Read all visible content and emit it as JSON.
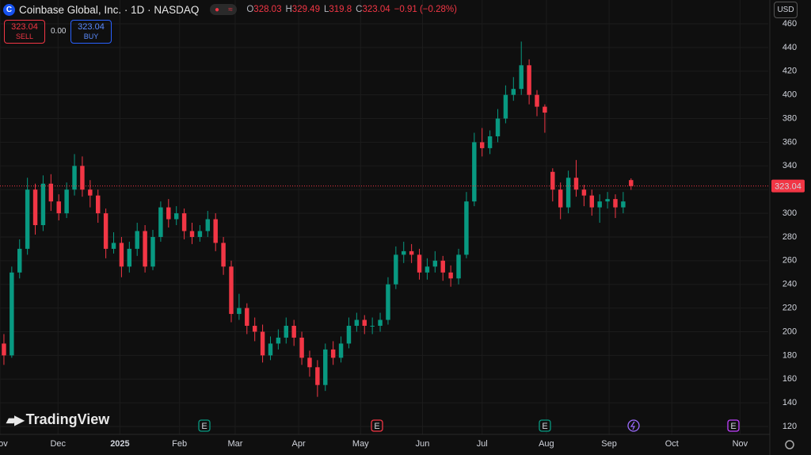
{
  "chart_data": {
    "type": "candlestick",
    "title": "Coinbase Global, Inc. · 1D · NASDAQ",
    "ohlc": [
      {
        "label": "O",
        "value": 328.03
      },
      {
        "label": "H",
        "value": 329.49
      },
      {
        "label": "L",
        "value": 319.8
      },
      {
        "label": "C",
        "value": 323.04
      }
    ],
    "change": "−0.91 (−0.28%)",
    "trade": {
      "sell_price": "323.04",
      "sell_label": "SELL",
      "spread": "0.00",
      "buy_price": "323.04",
      "buy_label": "BUY"
    },
    "currency": "USD",
    "current_price": 323.04,
    "brand": "TradingView",
    "events": [
      "E",
      "E",
      "E",
      "E"
    ],
    "up_color": "#089981",
    "down_color": "#f23645",
    "open": [
      190,
      180,
      250,
      270,
      320,
      290,
      325,
      310,
      300,
      320,
      340,
      320,
      315,
      300,
      270,
      275,
      255,
      270,
      285,
      255,
      280,
      305,
      295,
      300,
      285,
      280,
      285,
      295,
      275,
      255,
      215,
      220,
      205,
      200,
      180,
      190,
      195,
      205,
      195,
      178,
      170,
      155,
      185,
      178,
      190,
      205,
      210,
      205,
      205,
      210,
      240,
      265,
      268,
      265,
      250,
      255,
      260,
      250,
      245,
      265,
      310,
      360,
      355,
      365,
      380,
      400,
      405,
      425,
      400,
      390,
      335,
      320,
      305,
      330,
      320,
      315,
      305,
      310,
      312,
      305,
      328.03
    ],
    "high": [
      198,
      255,
      278,
      330,
      325,
      332,
      333,
      316,
      326,
      350,
      348,
      328,
      320,
      304,
      284,
      280,
      276,
      292,
      290,
      286,
      310,
      312,
      306,
      304,
      292,
      290,
      302,
      300,
      280,
      260,
      232,
      224,
      212,
      206,
      196,
      202,
      212,
      210,
      200,
      184,
      176,
      190,
      192,
      196,
      212,
      216,
      214,
      212,
      216,
      246,
      272,
      276,
      274,
      270,
      262,
      268,
      264,
      256,
      270,
      318,
      368,
      372,
      370,
      388,
      408,
      415,
      445,
      430,
      404,
      392,
      338,
      326,
      336,
      345,
      324,
      320,
      316,
      318,
      316,
      318,
      329.49
    ],
    "low": [
      172,
      178,
      245,
      265,
      282,
      285,
      302,
      294,
      296,
      315,
      314,
      305,
      292,
      262,
      266,
      246,
      250,
      264,
      250,
      252,
      276,
      288,
      290,
      278,
      274,
      276,
      280,
      268,
      248,
      208,
      210,
      198,
      192,
      174,
      176,
      185,
      190,
      188,
      172,
      162,
      145,
      150,
      172,
      174,
      186,
      200,
      198,
      198,
      200,
      206,
      236,
      258,
      258,
      244,
      244,
      250,
      243,
      238,
      240,
      262,
      306,
      348,
      350,
      360,
      376,
      395,
      400,
      392,
      382,
      368,
      310,
      295,
      300,
      314,
      306,
      298,
      292,
      304,
      296,
      300,
      319.8
    ],
    "close": [
      180,
      250,
      270,
      320,
      290,
      325,
      310,
      300,
      320,
      340,
      320,
      315,
      300,
      270,
      275,
      255,
      270,
      285,
      255,
      280,
      305,
      295,
      300,
      285,
      280,
      285,
      295,
      275,
      255,
      215,
      220,
      205,
      200,
      180,
      190,
      195,
      205,
      195,
      178,
      170,
      155,
      185,
      178,
      190,
      205,
      210,
      205,
      205,
      210,
      240,
      265,
      268,
      265,
      250,
      255,
      260,
      250,
      245,
      265,
      310,
      360,
      355,
      365,
      380,
      400,
      405,
      425,
      400,
      390,
      385,
      320,
      305,
      330,
      320,
      315,
      305,
      310,
      312,
      305,
      310,
      323.04
    ],
    "xlim": [
      -0.5,
      97.5
    ],
    "xticks": [
      {
        "value": -0.5,
        "label": "Nov"
      },
      {
        "value": 6.9,
        "label": "Dec"
      },
      {
        "value": 14.8,
        "label": "2025"
      },
      {
        "value": 22.4,
        "label": "Feb"
      },
      {
        "value": 29.5,
        "label": "Mar"
      },
      {
        "value": 37.6,
        "label": "Apr"
      },
      {
        "value": 45.5,
        "label": "May"
      },
      {
        "value": 53.4,
        "label": "Jun"
      },
      {
        "value": 61.0,
        "label": "Jul"
      },
      {
        "value": 69.2,
        "label": "Aug"
      },
      {
        "value": 77.2,
        "label": "Sep"
      },
      {
        "value": 85.2,
        "label": "Oct"
      },
      {
        "value": 93.9,
        "label": "Nov"
      }
    ],
    "ylim": [
      113.3,
      480.1
    ],
    "yticks": [
      120,
      140,
      160,
      180,
      200,
      220,
      240,
      260,
      280,
      300,
      320,
      340,
      360,
      380,
      400,
      420,
      440,
      460
    ],
    "grid": true
  }
}
